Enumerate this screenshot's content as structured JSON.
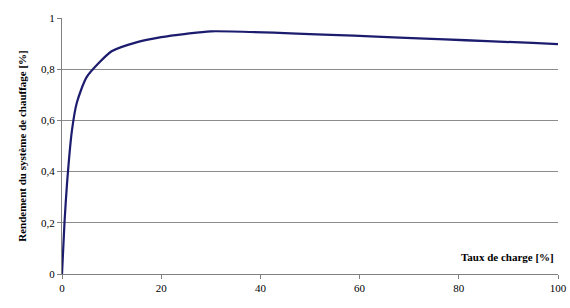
{
  "chart_data": {
    "type": "line",
    "x_label": "Taux de charge [%]",
    "y_label": "Rendement du système de chauffage [%]",
    "x": [
      0,
      0.5,
      1,
      2,
      3,
      5,
      10,
      15,
      20,
      25,
      30,
      100
    ],
    "series": [
      {
        "color": "#1c1c6e",
        "values": [
          0,
          0.2,
          0.35,
          0.56,
          0.67,
          0.77,
          0.87,
          0.905,
          0.925,
          0.938,
          0.948,
          0.898
        ]
      }
    ],
    "xlim": [
      0,
      100
    ],
    "xticks": [
      0,
      20,
      40,
      60,
      80,
      100
    ],
    "ylim": [
      0,
      1
    ],
    "yticks": [
      0,
      {
        "value": 0.2,
        "label": "0,2"
      },
      {
        "value": 0.4,
        "label": "0,4"
      },
      {
        "value": 0.6,
        "label": "0,6"
      },
      {
        "value": 0.8,
        "label": "0,8"
      },
      1
    ],
    "grid": true
  }
}
